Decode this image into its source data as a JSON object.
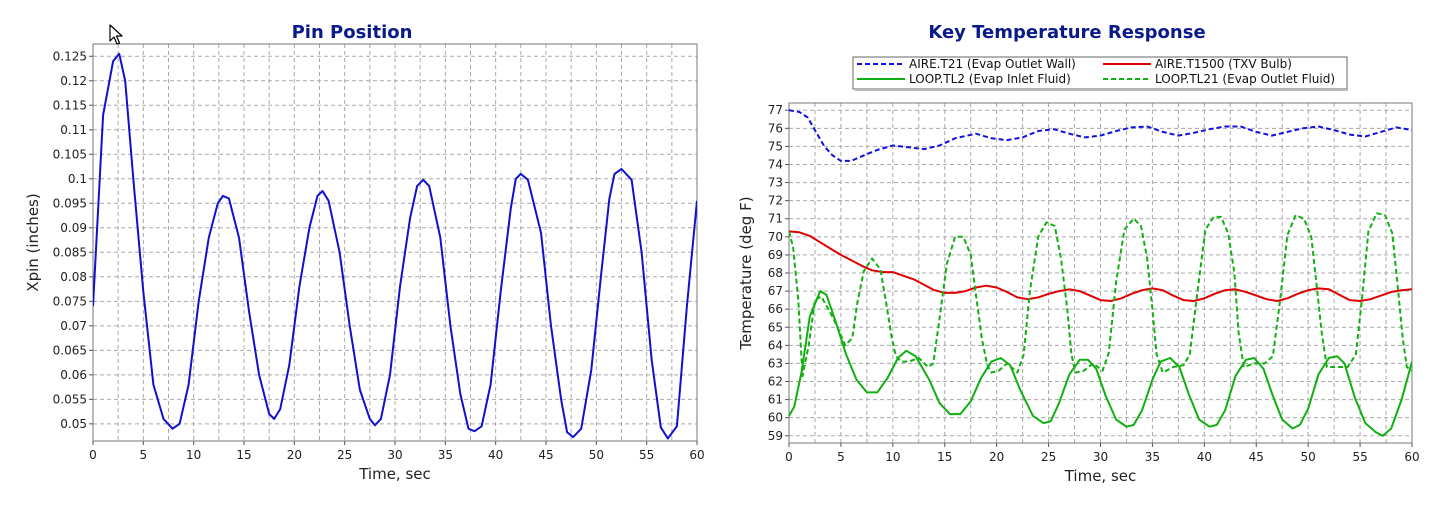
{
  "chart_data": [
    {
      "type": "line",
      "title": "Pin Position",
      "xlabel": "Time, sec",
      "ylabel": "Xpin (inches)",
      "xlim": [
        0,
        60
      ],
      "ylim": [
        0.0465,
        0.1275
      ],
      "x_ticks": [
        "0",
        "5",
        "10",
        "15",
        "20",
        "25",
        "30",
        "35",
        "40",
        "45",
        "50",
        "55",
        "60"
      ],
      "y_ticks": [
        "0.05",
        "0.055",
        "0.06",
        "0.065",
        "0.07",
        "0.075",
        "0.08",
        "0.085",
        "0.09",
        "0.095",
        "0.1",
        "0.105",
        "0.11",
        "0.115",
        "0.12",
        "0.125"
      ],
      "grid": true,
      "colors": {
        "series": "#1010d0",
        "grid": "#a8a8a8",
        "title": "#0a1a8a"
      },
      "series": [
        {
          "x": [
            0,
            1,
            2,
            2.6,
            3.2,
            4,
            5,
            6,
            7,
            7.9,
            8.6,
            9.5,
            10.5,
            11.5,
            12.4,
            12.9,
            13.5,
            14.5,
            15.5,
            16.5,
            17.5,
            18,
            18.6,
            19.5,
            20.5,
            21.5,
            22.3,
            22.8,
            23.4,
            24.5,
            25.5,
            26.5,
            27.5,
            28,
            28.6,
            29.5,
            30.5,
            31.5,
            32.2,
            32.8,
            33.4,
            34.5,
            35.5,
            36.5,
            37.3,
            37.9,
            38.6,
            39.5,
            40.5,
            41.5,
            42,
            42.5,
            43.2,
            44.5,
            45.5,
            46.5,
            47.1,
            47.7,
            48.5,
            49.5,
            50.5,
            51.3,
            51.8,
            52.5,
            53.5,
            54.5,
            55.5,
            56.4,
            57.1,
            58,
            59,
            60
          ],
          "values": [
            0.074,
            0.113,
            0.124,
            0.1255,
            0.12,
            0.1,
            0.077,
            0.058,
            0.051,
            0.049,
            0.05,
            0.058,
            0.075,
            0.088,
            0.095,
            0.0965,
            0.096,
            0.088,
            0.073,
            0.06,
            0.052,
            0.051,
            0.053,
            0.062,
            0.078,
            0.09,
            0.0965,
            0.0975,
            0.0955,
            0.085,
            0.07,
            0.057,
            0.051,
            0.0497,
            0.051,
            0.06,
            0.078,
            0.092,
            0.0985,
            0.0998,
            0.0985,
            0.088,
            0.07,
            0.056,
            0.049,
            0.0485,
            0.0495,
            0.058,
            0.077,
            0.094,
            0.1,
            0.101,
            0.0998,
            0.089,
            0.07,
            0.055,
            0.0483,
            0.0473,
            0.049,
            0.061,
            0.081,
            0.096,
            0.101,
            0.102,
            0.0998,
            0.085,
            0.063,
            0.0493,
            0.047,
            0.0495,
            0.074,
            0.0955
          ]
        }
      ]
    },
    {
      "type": "line",
      "title": "Key Temperature Response",
      "xlabel": "Time, sec",
      "ylabel": "Temperature (deg F)",
      "xlim": [
        0,
        60
      ],
      "ylim": [
        58.6,
        77.4
      ],
      "x_ticks": [
        "0",
        "5",
        "10",
        "15",
        "20",
        "25",
        "30",
        "35",
        "40",
        "45",
        "50",
        "55",
        "60"
      ],
      "y_ticks": [
        "59",
        "60",
        "61",
        "62",
        "63",
        "64",
        "65",
        "66",
        "67",
        "68",
        "69",
        "70",
        "71",
        "72",
        "73",
        "74",
        "75",
        "76",
        "77"
      ],
      "grid": true,
      "legend_position": "top",
      "colors": {
        "grid": "#a8a8a8",
        "title": "#0a1a8a"
      },
      "series": [
        {
          "name": "AIRE.T21 (Evap Outlet Wall)",
          "color": "#1010e0",
          "dashed": true,
          "x": [
            0,
            1,
            1.8,
            2.6,
            3.4,
            4.2,
            5,
            6,
            7.2,
            8.5,
            10,
            11.5,
            13,
            14.5,
            16,
            18,
            19.5,
            21,
            22.5,
            24,
            25.5,
            27,
            28.5,
            30,
            31.5,
            33,
            34.5,
            36,
            37.5,
            39,
            40.5,
            42,
            43.5,
            45,
            46.5,
            48,
            49.5,
            51,
            52.5,
            54,
            55.5,
            57,
            58.5,
            60
          ],
          "values": [
            77,
            76.9,
            76.6,
            75.8,
            75,
            74.5,
            74.2,
            74.2,
            74.5,
            74.8,
            75.05,
            74.95,
            74.85,
            75.05,
            75.45,
            75.7,
            75.45,
            75.35,
            75.5,
            75.85,
            75.95,
            75.7,
            75.5,
            75.6,
            75.85,
            76.05,
            76.1,
            75.8,
            75.6,
            75.75,
            75.95,
            76.1,
            76.1,
            75.8,
            75.6,
            75.8,
            76,
            76.1,
            75.9,
            75.65,
            75.55,
            75.8,
            76.05,
            75.9
          ]
        },
        {
          "name": "AIRE.T1500 (TXV Bulb)",
          "color": "#e00000",
          "dashed": false,
          "x": [
            0,
            1,
            2,
            3,
            4,
            5,
            6,
            7,
            8,
            9,
            10,
            11,
            12,
            13,
            14,
            15,
            16,
            17,
            18,
            19,
            20,
            21,
            22,
            23,
            24,
            25,
            26,
            27,
            28,
            29,
            30,
            31,
            32,
            33,
            34,
            35,
            36,
            37,
            38,
            39,
            40,
            41,
            42,
            43,
            44,
            45,
            46,
            47,
            48,
            49,
            50,
            51,
            52,
            53,
            54,
            55,
            56,
            57,
            58,
            59,
            60
          ],
          "values": [
            70.3,
            70.25,
            70.05,
            69.7,
            69.35,
            69,
            68.7,
            68.4,
            68.15,
            68.05,
            68.05,
            67.85,
            67.65,
            67.35,
            67.05,
            66.9,
            66.9,
            67,
            67.2,
            67.3,
            67.2,
            66.95,
            66.65,
            66.55,
            66.65,
            66.85,
            67,
            67.1,
            67,
            66.75,
            66.5,
            66.45,
            66.6,
            66.85,
            67.05,
            67.15,
            67.05,
            66.75,
            66.5,
            66.45,
            66.6,
            66.85,
            67.05,
            67.1,
            66.95,
            66.75,
            66.55,
            66.45,
            66.6,
            66.85,
            67.05,
            67.15,
            67.1,
            66.8,
            66.5,
            66.45,
            66.55,
            66.75,
            66.95,
            67.05,
            67.1
          ]
        },
        {
          "name": "LOOP.TL2 (Evap Inlet Fluid)",
          "color": "#10b010",
          "dashed": false,
          "x": [
            0,
            0.5,
            1.2,
            2,
            3,
            3.6,
            4.5,
            5.5,
            6.5,
            7.5,
            8.5,
            9.5,
            10.5,
            11.3,
            12.2,
            13.5,
            14.5,
            15.5,
            16.5,
            17.5,
            18.5,
            19.5,
            20.4,
            21.3,
            22.3,
            23.5,
            24.5,
            25.2,
            26,
            27,
            28,
            28.8,
            29.6,
            30.5,
            31.5,
            32.5,
            33.2,
            34,
            35,
            35.8,
            36.7,
            37.6,
            38.5,
            39.5,
            40.5,
            41.2,
            42,
            43,
            44,
            44.8,
            45.7,
            46.6,
            47.5,
            48.5,
            49.2,
            50,
            51,
            52,
            52.8,
            53.5,
            54.5,
            55.5,
            56.5,
            57.2,
            58,
            59,
            60
          ],
          "values": [
            60.1,
            60.6,
            62.5,
            65.6,
            67,
            66.8,
            65.3,
            63.5,
            62.1,
            61.4,
            61.4,
            62.2,
            63.3,
            63.7,
            63.4,
            62.1,
            60.8,
            60.2,
            60.2,
            60.9,
            62.2,
            63.1,
            63.3,
            62.9,
            61.5,
            60.1,
            59.7,
            59.8,
            60.8,
            62.4,
            63.2,
            63.2,
            62.7,
            61.2,
            59.9,
            59.5,
            59.6,
            60.4,
            62.1,
            63.1,
            63.3,
            62.8,
            61.3,
            59.9,
            59.5,
            59.6,
            60.4,
            62.3,
            63.2,
            63.3,
            62.7,
            61.2,
            59.9,
            59.4,
            59.6,
            60.5,
            62.4,
            63.3,
            63.4,
            63,
            61.1,
            59.7,
            59.2,
            59,
            59.4,
            61,
            63.1
          ]
        },
        {
          "name": "LOOP.TL21 (Evap Outlet Fluid)",
          "color": "#10b010",
          "dashed": true,
          "x": [
            0,
            0.4,
            0.9,
            1.3,
            1.9,
            2.5,
            3.1,
            3.8,
            4.6,
            5.4,
            6.1,
            6.6,
            7.2,
            8,
            8.8,
            9.4,
            9.9,
            10.3,
            10.8,
            11.5,
            12.5,
            13.4,
            13.9,
            14.5,
            15.2,
            16,
            16.8,
            17.5,
            18.1,
            18.6,
            19.1,
            19.5,
            20.2,
            21,
            22,
            22.6,
            23.2,
            24,
            24.8,
            25.6,
            26.2,
            26.8,
            27.2,
            27.6,
            28.4,
            29.3,
            30.2,
            30.8,
            31.5,
            32.3,
            33.2,
            33.9,
            34.5,
            35,
            35.4,
            36,
            37,
            38,
            38.6,
            39.3,
            40.1,
            40.9,
            41.6,
            42.3,
            42.9,
            43.3,
            43.8,
            44.8,
            45.8,
            46.6,
            47.3,
            48,
            48.8,
            49.6,
            50.3,
            50.8,
            51.3,
            51.8,
            52.8,
            53.8,
            54.6,
            55.2,
            55.8,
            56.6,
            57.4,
            58.1,
            58.6,
            59.1,
            59.5,
            60
          ],
          "values": [
            70.3,
            69.4,
            66.5,
            62.3,
            64,
            66.5,
            66.7,
            66,
            65.1,
            64,
            64.4,
            66.4,
            68.1,
            68.8,
            68.2,
            66.2,
            64.4,
            63.4,
            63.1,
            63.1,
            63.3,
            62.8,
            63,
            65.5,
            68.5,
            70,
            70,
            69,
            66.4,
            64.3,
            62.9,
            62.5,
            62.6,
            63,
            62.5,
            63.5,
            67,
            70,
            70.8,
            70.6,
            68.8,
            66,
            63.5,
            62.5,
            62.6,
            63,
            62.6,
            63.6,
            67.5,
            70.4,
            71,
            70.6,
            68.8,
            66,
            63.5,
            62.5,
            62.8,
            62.9,
            63.5,
            66.8,
            70.4,
            71.1,
            71.1,
            70.2,
            68,
            64.7,
            62.8,
            63,
            63,
            63.4,
            66.5,
            70.1,
            71.2,
            71,
            70,
            67.4,
            64.7,
            62.8,
            62.8,
            62.8,
            63.5,
            66.7,
            70.3,
            71.3,
            71.2,
            70.2,
            67.4,
            64.4,
            62.8,
            62.6
          ]
        }
      ]
    }
  ]
}
